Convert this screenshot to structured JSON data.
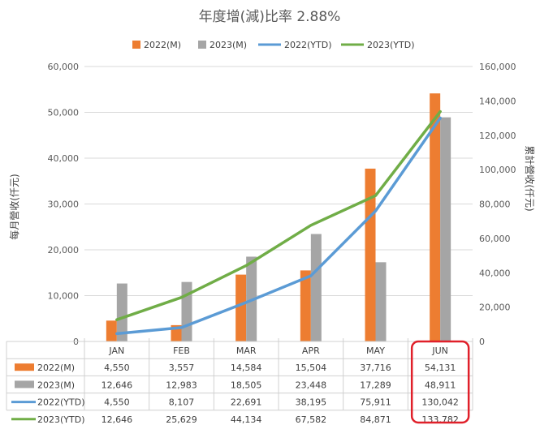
{
  "chart_data": {
    "type": "bar",
    "title": "年度增(減)比率 2.88%",
    "categories": [
      "JAN",
      "FEB",
      "MAR",
      "APR",
      "MAY",
      "JUN"
    ],
    "ylabel": "每月營收(仟元)",
    "y2label": "累計營收(仟元)",
    "ylim": [
      0,
      60000
    ],
    "y2lim": [
      0,
      160000
    ],
    "yticks": [
      "0",
      "10,000",
      "20,000",
      "30,000",
      "40,000",
      "50,000",
      "60,000"
    ],
    "y2ticks": [
      "0",
      "20,000",
      "40,000",
      "60,000",
      "80,000",
      "100,000",
      "120,000",
      "140,000",
      "160,000"
    ],
    "grid": true,
    "legend": "top",
    "series": [
      {
        "name": "2022(M)",
        "kind": "bar",
        "axis": "left",
        "color": "#ED7D31",
        "values": [
          4550,
          3557,
          14584,
          15504,
          37716,
          54131
        ],
        "labels": [
          "4,550",
          "3,557",
          "14,584",
          "15,504",
          "37,716",
          "54,131"
        ]
      },
      {
        "name": "2023(M)",
        "kind": "bar",
        "axis": "left",
        "color": "#A5A5A5",
        "values": [
          12646,
          12983,
          18505,
          23448,
          17289,
          48911
        ],
        "labels": [
          "12,646",
          "12,983",
          "18,505",
          "23,448",
          "17,289",
          "48,911"
        ]
      },
      {
        "name": "2022(YTD)",
        "kind": "line",
        "axis": "right",
        "color": "#5B9BD5",
        "values": [
          4550,
          8107,
          22691,
          38195,
          75911,
          130042
        ],
        "labels": [
          "4,550",
          "8,107",
          "22,691",
          "38,195",
          "75,911",
          "130,042"
        ]
      },
      {
        "name": "2023(YTD)",
        "kind": "line",
        "axis": "right",
        "color": "#70AD47",
        "values": [
          12646,
          25629,
          44134,
          67582,
          84871,
          133782
        ],
        "labels": [
          "12,646",
          "25,629",
          "44,134",
          "67,582",
          "84,871",
          "133,782"
        ]
      }
    ],
    "highlight": {
      "category": "JUN",
      "color": "#E0202A"
    }
  }
}
